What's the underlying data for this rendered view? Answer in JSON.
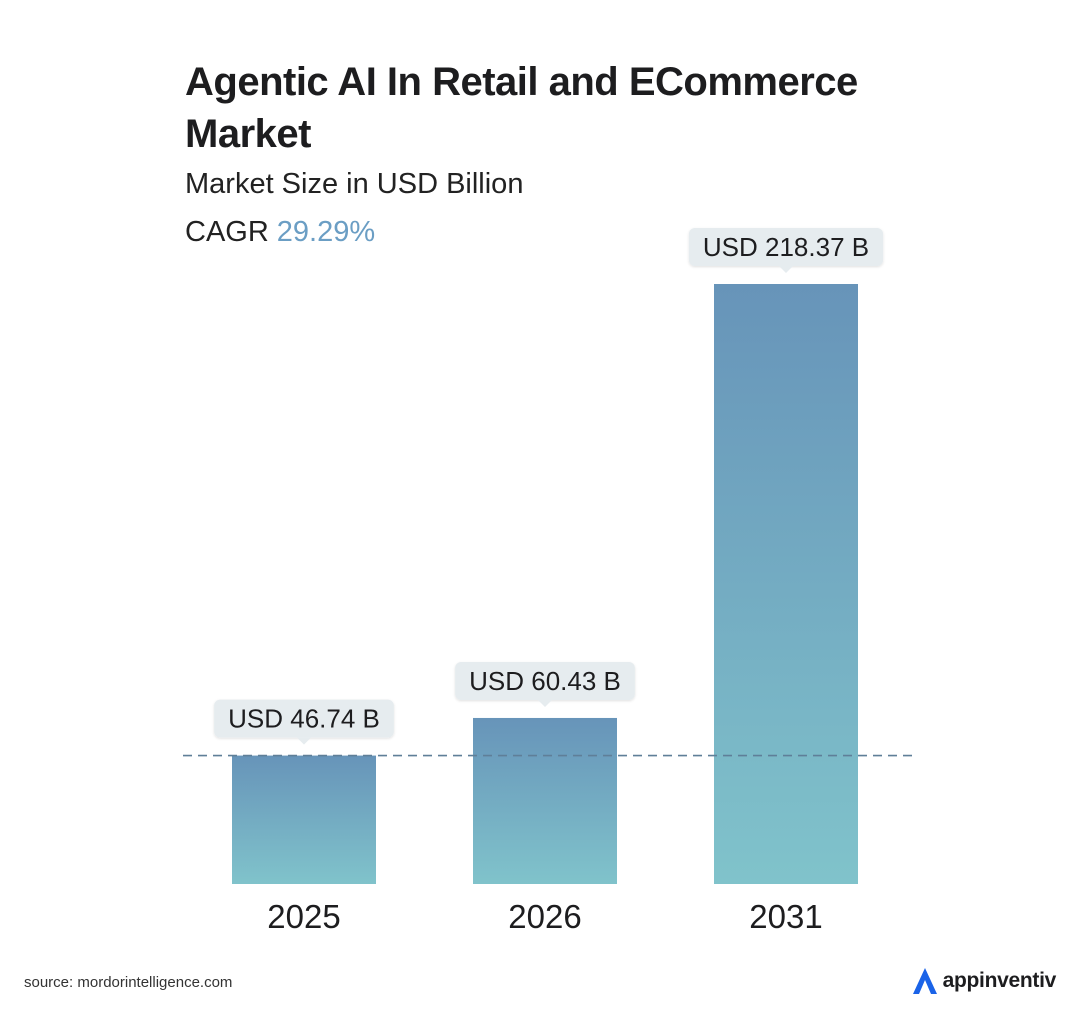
{
  "header": {
    "title": "Agentic AI In Retail and ECommerce Market",
    "subtitle": "Market Size in USD Billion",
    "cagr_label": "CAGR",
    "cagr_value": "29.29%"
  },
  "chart_data": {
    "type": "bar",
    "categories": [
      "2025",
      "2026",
      "2031"
    ],
    "values": [
      46.74,
      60.43,
      218.37
    ],
    "data_labels": [
      "USD 46.74 B",
      "USD 60.43 B",
      "USD 218.37 B"
    ],
    "title": "Agentic AI In Retail and ECommerce Market",
    "subtitle": "Market Size in USD Billion",
    "ylim": [
      0,
      218.37
    ],
    "grid": false,
    "reference_line": {
      "value": 46.74,
      "style": "dashed"
    },
    "colors": {
      "bar_top": "#6794b9",
      "bar_bottom": "#80c3cb",
      "label_bg": "#e6ecef",
      "cagr": "#6b9ec4",
      "ref_line": "#5f7f98"
    }
  },
  "footer": {
    "source": "source: mordorintelligence.com",
    "brand": "appinventiv",
    "brand_icon": "appinventiv-logo-icon",
    "brand_color": "#1a63e8"
  }
}
